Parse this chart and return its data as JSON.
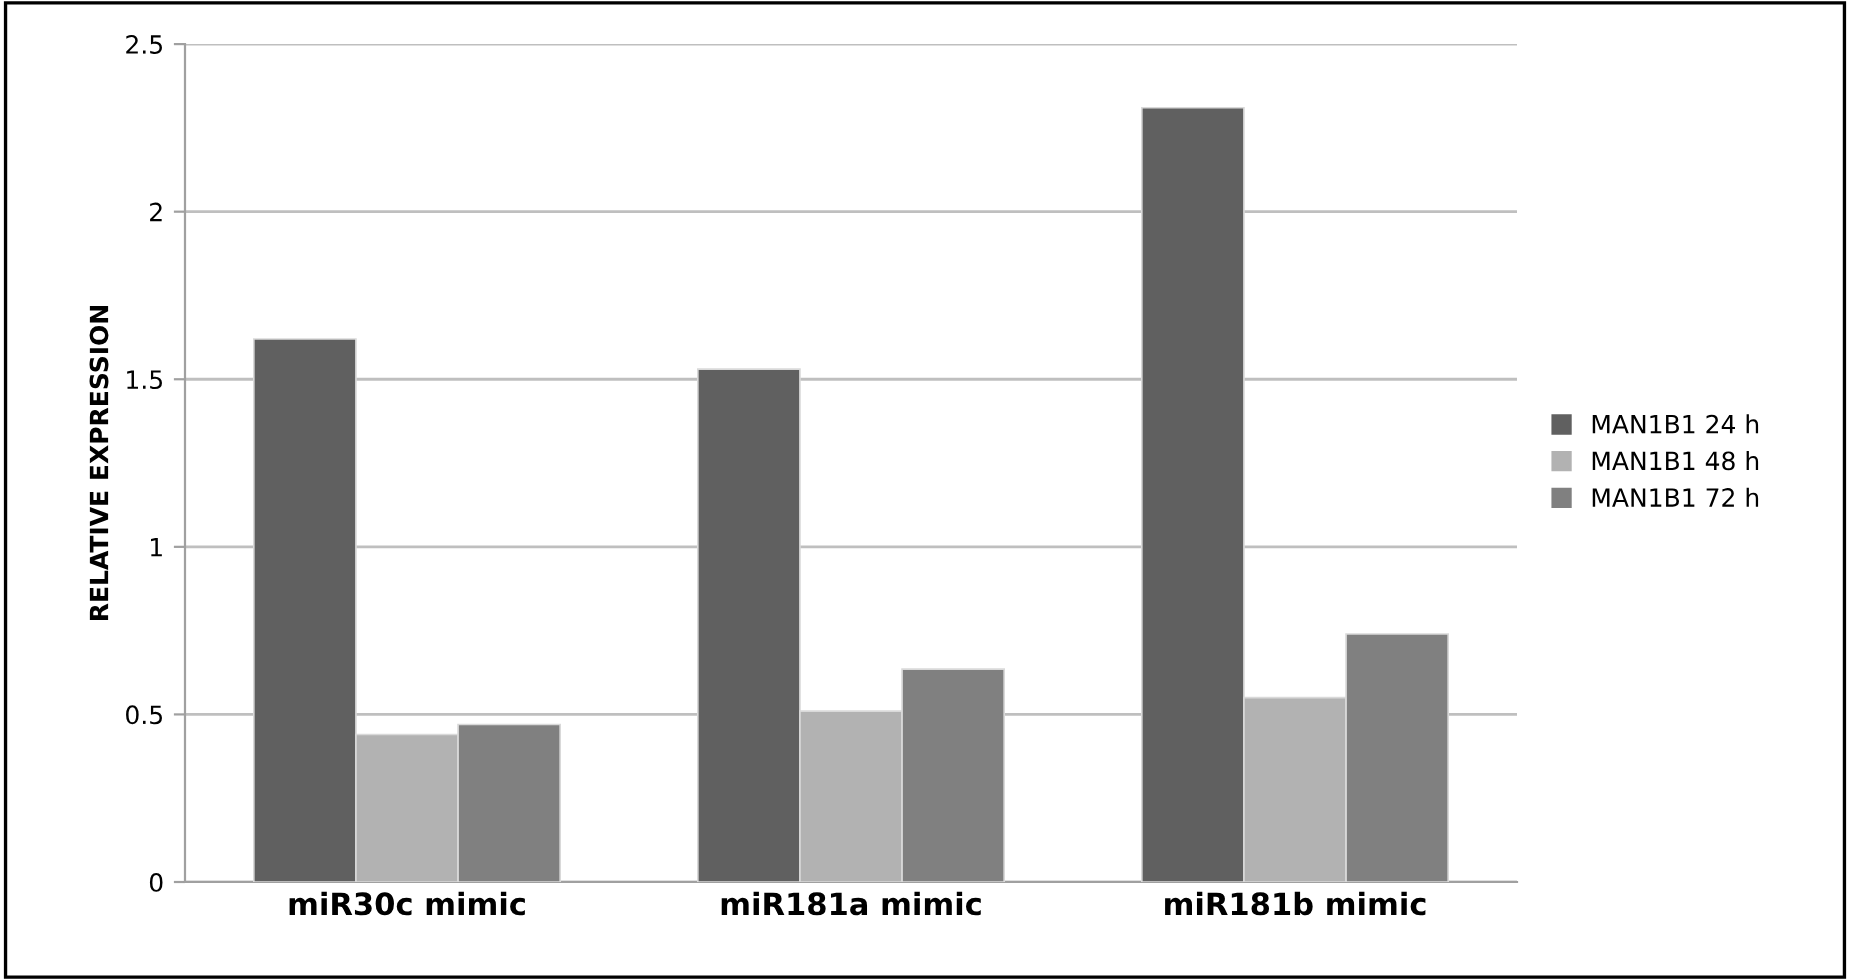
{
  "chart_data": {
    "type": "bar",
    "ylabel": "RELATIVE EXPRESSION",
    "categories": [
      "miR30c mimic",
      "miR181a mimic",
      "miR181b mimic"
    ],
    "series": [
      {
        "name": "MAN1B1 24 h",
        "color": "#606060",
        "values": [
          1.62,
          1.53,
          2.31
        ]
      },
      {
        "name": "MAN1B1 48 h",
        "color": "#b2b2b2",
        "values": [
          0.44,
          0.51,
          0.55
        ]
      },
      {
        "name": "MAN1B1 72 h",
        "color": "#808080",
        "values": [
          0.47,
          0.635,
          0.74
        ]
      }
    ],
    "ylim": [
      0,
      2.5
    ],
    "yticks": [
      0,
      0.5,
      1,
      1.5,
      2,
      2.5
    ],
    "grid": "y",
    "legend": "right"
  }
}
